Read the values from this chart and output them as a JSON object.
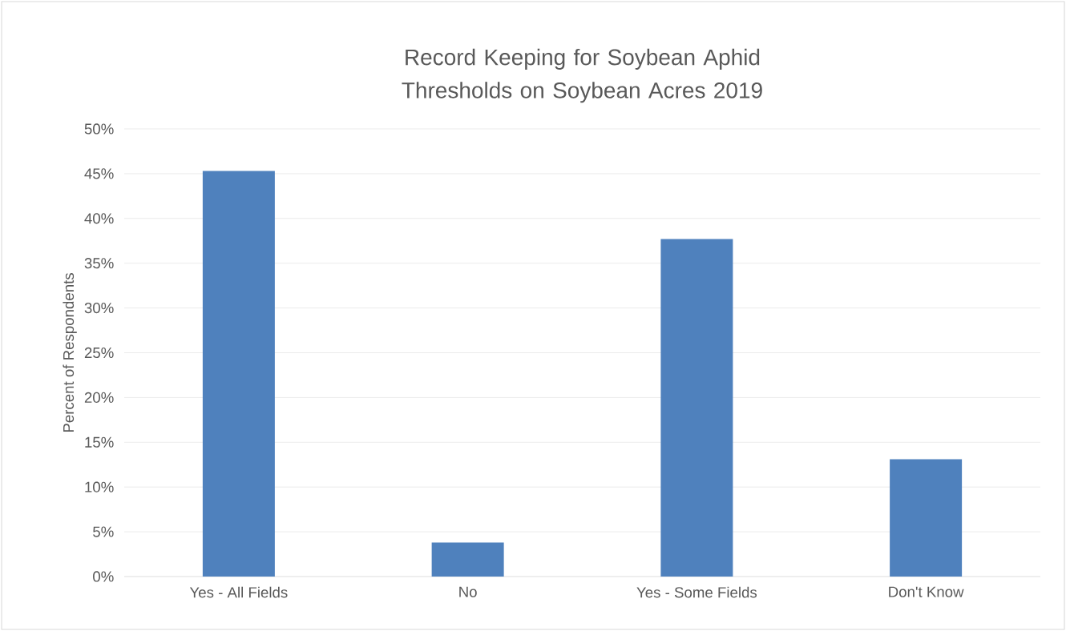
{
  "chart_data": {
    "type": "bar",
    "title": "Record Keeping for Soybean Aphid Thresholds on Soybean Acres 2019",
    "ylabel": "Percent of Respondents",
    "categories": [
      "Yes - All Fields",
      "No",
      "Yes - Some Fields",
      "Don't Know"
    ],
    "values": [
      45.3,
      3.8,
      37.7,
      13.1
    ],
    "color": "#4f81bd",
    "ylim": [
      0,
      50
    ],
    "yticks": [
      {
        "value": 0,
        "label": "0%"
      },
      {
        "value": 5,
        "label": "5%"
      },
      {
        "value": 10,
        "label": "10%"
      },
      {
        "value": 15,
        "label": "15%"
      },
      {
        "value": 20,
        "label": "20%"
      },
      {
        "value": 25,
        "label": "25%"
      },
      {
        "value": 30,
        "label": "30%"
      },
      {
        "value": 35,
        "label": "35%"
      },
      {
        "value": 40,
        "label": "40%"
      },
      {
        "value": 45,
        "label": "45%"
      },
      {
        "value": 50,
        "label": "50%"
      }
    ],
    "grid": "y"
  }
}
